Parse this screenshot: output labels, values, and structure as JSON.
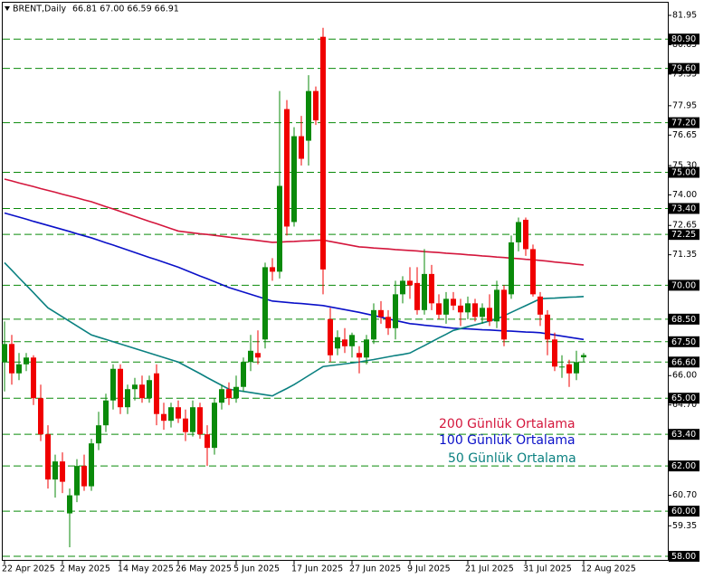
{
  "chart_data": {
    "type": "candlestick",
    "title": "BRENT,Daily",
    "subtitle": "66.81 67.00 66.59 66.91",
    "categories": [
      "22 Apr 2025",
      null,
      null,
      null,
      null,
      null,
      null,
      null,
      "2 May 2025",
      null,
      null,
      null,
      null,
      null,
      null,
      null,
      "14 May 2025",
      null,
      null,
      null,
      null,
      null,
      null,
      null,
      "26 May 2025",
      null,
      null,
      null,
      null,
      null,
      null,
      null,
      "5 Jun 2025",
      null,
      null,
      null,
      null,
      null,
      null,
      null,
      "17 Jun 2025",
      null,
      null,
      null,
      null,
      null,
      null,
      null,
      "27 Jun 2025",
      null,
      null,
      null,
      null,
      null,
      null,
      null,
      "9 Jul 2025",
      null,
      null,
      null,
      null,
      null,
      null,
      null,
      "21 Jul 2025",
      null,
      null,
      null,
      null,
      null,
      null,
      null,
      "31 Jul 2025",
      null,
      null,
      null,
      null,
      null,
      null,
      null,
      "12 Aug 2025"
    ],
    "candles": {
      "up_color": "#0a8a0a",
      "down_color": "#f00000",
      "open": [
        66.6,
        67.4,
        66.1,
        66.5,
        66.8,
        65.0,
        63.4,
        61.4,
        62.2,
        59.9,
        60.7,
        62.0,
        61.1,
        63.0,
        63.8,
        64.9,
        66.3,
        64.6,
        65.4,
        65.6,
        65.0,
        66.1,
        64.3,
        64.0,
        64.6,
        64.1,
        63.5,
        64.6,
        63.4,
        62.8,
        64.8,
        65.4,
        65.0,
        65.5,
        66.6,
        67.0,
        67.6,
        70.8,
        70.6,
        77.8,
        72.8,
        76.6,
        76.4,
        78.6,
        81.0,
        68.5,
        67.2,
        67.6,
        67.3,
        67.0,
        66.8,
        67.6,
        68.9,
        68.6,
        68.1,
        69.6,
        70.2,
        70.1,
        68.9,
        70.5,
        69.2,
        68.7,
        69.4,
        69.1,
        68.8,
        69.2,
        68.6,
        69.0,
        68.4,
        69.8,
        69.6,
        71.9,
        72.9,
        71.6,
        69.5,
        68.7,
        67.6,
        66.4,
        66.5,
        66.1,
        66.81
      ],
      "high": [
        68.4,
        67.8,
        67.0,
        67.0,
        66.9,
        65.6,
        63.8,
        62.5,
        62.6,
        61.0,
        62.3,
        62.5,
        63.2,
        64.4,
        65.2,
        66.5,
        66.5,
        65.6,
        65.9,
        66.0,
        66.0,
        66.5,
        64.8,
        64.8,
        64.9,
        64.5,
        64.9,
        64.8,
        63.8,
        65.0,
        65.6,
        65.7,
        66.0,
        66.8,
        67.8,
        68.0,
        71.0,
        71.2,
        78.6,
        78.2,
        77.0,
        77.5,
        79.3,
        78.8,
        81.4,
        69.0,
        68.0,
        68.1,
        67.9,
        67.3,
        67.8,
        69.2,
        69.3,
        68.9,
        70.2,
        70.4,
        70.8,
        70.8,
        71.6,
        70.9,
        69.6,
        69.7,
        69.7,
        69.4,
        69.5,
        69.4,
        69.2,
        69.6,
        70.2,
        70.0,
        72.2,
        73.0,
        73.0,
        71.8,
        69.7,
        68.9,
        67.9,
        66.9,
        66.7,
        67.1,
        67.0
      ],
      "low": [
        65.3,
        65.6,
        65.8,
        66.2,
        64.7,
        63.1,
        61.0,
        60.6,
        60.8,
        58.4,
        60.4,
        60.9,
        60.9,
        62.7,
        63.5,
        64.5,
        64.3,
        64.3,
        64.9,
        64.8,
        64.8,
        63.8,
        63.6,
        63.7,
        63.9,
        63.1,
        63.3,
        63.2,
        62.0,
        62.5,
        64.5,
        64.7,
        64.8,
        65.3,
        66.2,
        66.5,
        67.2,
        70.2,
        70.3,
        72.2,
        72.6,
        75.3,
        75.3,
        77.1,
        69.6,
        66.6,
        66.9,
        67.0,
        66.8,
        66.1,
        66.5,
        67.4,
        68.3,
        67.8,
        67.6,
        69.2,
        69.4,
        68.7,
        68.7,
        68.9,
        68.5,
        68.3,
        68.9,
        68.2,
        68.5,
        68.4,
        68.3,
        68.2,
        68.1,
        67.3,
        69.4,
        71.5,
        71.3,
        69.5,
        68.2,
        66.9,
        66.2,
        65.9,
        65.5,
        65.8,
        66.59
      ],
      "close": [
        67.4,
        66.1,
        66.5,
        66.8,
        65.0,
        63.4,
        61.4,
        62.2,
        61.3,
        60.7,
        62.0,
        61.1,
        63.0,
        63.8,
        64.9,
        66.3,
        64.6,
        65.4,
        65.6,
        65.0,
        65.8,
        64.3,
        64.0,
        64.6,
        64.1,
        63.5,
        64.6,
        63.4,
        62.8,
        64.8,
        65.4,
        65.0,
        65.5,
        66.6,
        67.1,
        66.8,
        70.8,
        70.6,
        74.4,
        72.6,
        76.6,
        75.6,
        78.6,
        77.3,
        70.7,
        66.9,
        67.7,
        67.3,
        67.8,
        66.8,
        67.6,
        68.9,
        68.6,
        68.1,
        69.6,
        70.2,
        70.0,
        68.9,
        70.5,
        69.2,
        68.7,
        69.4,
        69.1,
        68.8,
        69.2,
        68.6,
        69.0,
        68.4,
        69.8,
        67.6,
        71.9,
        72.8,
        71.6,
        69.6,
        68.7,
        67.6,
        66.4,
        66.4,
        66.1,
        66.6,
        66.91
      ]
    },
    "series": [
      {
        "name": "200 Günlük Ortalama",
        "color": "#d4163c",
        "values": [
          74.7,
          74.62,
          74.53,
          74.45,
          74.37,
          74.28,
          74.2,
          74.12,
          74.03,
          73.95,
          73.87,
          73.78,
          73.7,
          73.59,
          73.48,
          73.38,
          73.27,
          73.16,
          73.05,
          72.94,
          72.83,
          72.73,
          72.62,
          72.51,
          72.4,
          72.36,
          72.32,
          72.28,
          72.25,
          72.21,
          72.17,
          72.13,
          72.09,
          72.05,
          72.02,
          71.98,
          71.94,
          71.9,
          71.91,
          71.93,
          71.94,
          71.96,
          71.97,
          71.99,
          72.0,
          71.94,
          71.88,
          71.82,
          71.76,
          71.7,
          71.68,
          71.65,
          71.63,
          71.61,
          71.58,
          71.56,
          71.54,
          71.52,
          71.49,
          71.47,
          71.45,
          71.42,
          71.4,
          71.38,
          71.35,
          71.33,
          71.3,
          71.28,
          71.25,
          71.23,
          71.2,
          71.18,
          71.15,
          71.13,
          71.1,
          71.07,
          71.03,
          71.0,
          70.97,
          70.93,
          70.9
        ]
      },
      {
        "name": "100 Günlük Ortalama",
        "color": "#0a10c8",
        "values": [
          73.2,
          73.11,
          73.02,
          72.93,
          72.83,
          72.74,
          72.65,
          72.56,
          72.47,
          72.38,
          72.28,
          72.19,
          72.1,
          71.99,
          71.88,
          71.78,
          71.67,
          71.56,
          71.45,
          71.34,
          71.23,
          71.13,
          71.02,
          70.91,
          70.8,
          70.67,
          70.54,
          70.41,
          70.29,
          70.16,
          70.03,
          69.9,
          69.8,
          69.7,
          69.6,
          69.5,
          69.4,
          69.3,
          69.27,
          69.24,
          69.21,
          69.19,
          69.16,
          69.13,
          69.1,
          69.04,
          68.98,
          68.92,
          68.86,
          68.8,
          68.73,
          68.66,
          68.59,
          68.51,
          68.44,
          68.37,
          68.3,
          68.27,
          68.23,
          68.2,
          68.17,
          68.13,
          68.1,
          68.08,
          68.07,
          68.05,
          68.03,
          68.02,
          68.0,
          67.98,
          67.97,
          67.95,
          67.93,
          67.92,
          67.9,
          67.85,
          67.8,
          67.75,
          67.7,
          67.65,
          67.6
        ]
      },
      {
        "name": "50 Günlük Ortalama",
        "color": "#0a8080",
        "values": [
          71.0,
          70.67,
          70.33,
          70.0,
          69.67,
          69.33,
          69.0,
          68.8,
          68.6,
          68.4,
          68.2,
          68.0,
          67.8,
          67.7,
          67.6,
          67.5,
          67.4,
          67.3,
          67.2,
          67.1,
          67.0,
          66.9,
          66.8,
          66.7,
          66.6,
          66.43,
          66.26,
          66.09,
          65.91,
          65.74,
          65.57,
          65.4,
          65.35,
          65.3,
          65.25,
          65.2,
          65.15,
          65.1,
          65.27,
          65.43,
          65.6,
          65.8,
          66.0,
          66.2,
          66.4,
          66.44,
          66.48,
          66.52,
          66.56,
          66.6,
          66.66,
          66.71,
          66.77,
          66.83,
          66.89,
          66.94,
          67.0,
          67.17,
          67.33,
          67.5,
          67.67,
          67.83,
          68.0,
          68.08,
          68.17,
          68.25,
          68.33,
          68.42,
          68.5,
          68.65,
          68.8,
          68.95,
          69.1,
          69.25,
          69.4,
          69.42,
          69.43,
          69.45,
          69.47,
          69.48,
          69.5
        ]
      }
    ],
    "levels_color": "#0a8a0a",
    "levels": [
      {
        "value": 80.9,
        "label": "80.90"
      },
      {
        "value": 79.6,
        "label": "79.60"
      },
      {
        "value": 77.2,
        "label": "77.20"
      },
      {
        "value": 75.0,
        "label": "75.00"
      },
      {
        "value": 73.4,
        "label": "73.40"
      },
      {
        "value": 72.25,
        "label": "72.25"
      },
      {
        "value": 70.0,
        "label": "70.00"
      },
      {
        "value": 68.5,
        "label": "68.50"
      },
      {
        "value": 67.5,
        "label": "67.50"
      },
      {
        "value": 66.6,
        "label": "66.60"
      },
      {
        "value": 65.0,
        "label": "65.00"
      },
      {
        "value": 63.4,
        "label": "63.40"
      },
      {
        "value": 62.0,
        "label": "62.00"
      },
      {
        "value": 60.0,
        "label": "60.00"
      },
      {
        "value": 58.0,
        "label": "58.00"
      }
    ],
    "ylim": [
      57.8,
      82.63
    ],
    "yticks": [
      81.95,
      80.65,
      79.35,
      77.95,
      76.65,
      {
        "value": 75.3,
        "label": "75.30"
      },
      {
        "value": 74.0,
        "label": "74.00"
      },
      72.65,
      71.35,
      {
        "value": 66.0,
        "label": "66.00"
      },
      {
        "value": 64.7,
        "label": "64.70"
      },
      {
        "value": 60.7,
        "label": "60.70"
      },
      59.35
    ]
  }
}
